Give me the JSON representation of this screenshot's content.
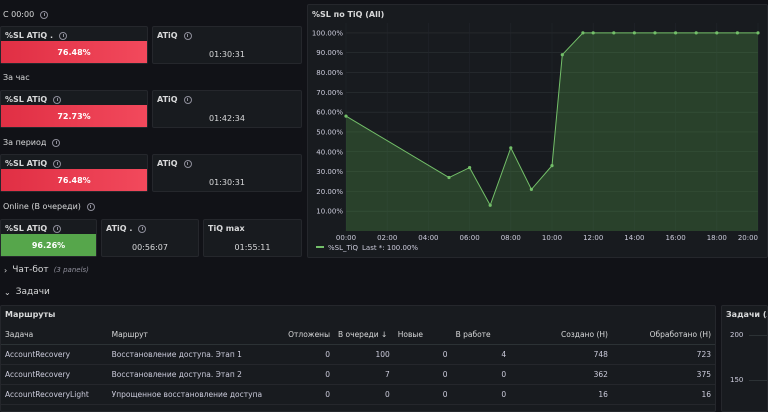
{
  "rows": {
    "c0000": "С 00:00",
    "za_chas": "За час",
    "za_period": "За период",
    "online": "Online (В очереди)"
  },
  "stats": {
    "sl_label": "%SL ATiQ .",
    "sl_label2": "%SL ATiQ",
    "atiq_label": "ATiQ",
    "atiq_label_online": "ATiQ .",
    "tiqmax_label": "TiQ max",
    "c0000_sl": "76.48%",
    "c0000_atiq": "01:30:31",
    "hour_sl": "72.73%",
    "hour_atiq": "01:42:34",
    "period_sl": "76.48%",
    "period_atiq": "01:30:31",
    "online_sl": "96.26%",
    "online_atiq": "00:56:07",
    "online_tiqmax": "01:55:11"
  },
  "chart_panel": {
    "title": "%SL по TiQ (All)"
  },
  "chart_data": {
    "type": "line",
    "title": "%SL по TiQ (All)",
    "x_labels": [
      "00:00",
      "02:00",
      "04:00",
      "06:00",
      "08:00",
      "10:00",
      "12:00",
      "14:00",
      "16:00",
      "18:00",
      "20:00"
    ],
    "y_labels": [
      "10.00%",
      "20.00%",
      "30.00%",
      "40.00%",
      "50.00%",
      "60.00%",
      "70.00%",
      "80.00%",
      "90.00%",
      "100.00%"
    ],
    "ylim": [
      0,
      105
    ],
    "xlim": [
      0,
      20
    ],
    "series": [
      {
        "name": "%SL_TiQ",
        "x": [
          0,
          5,
          6,
          7,
          8,
          9,
          10,
          10.5,
          11.5,
          12,
          13,
          14,
          15,
          16,
          17,
          18,
          19,
          20
        ],
        "y": [
          58,
          27,
          32,
          13,
          42,
          21,
          33,
          89,
          100,
          100,
          100,
          100,
          100,
          100,
          100,
          100,
          100,
          100
        ]
      }
    ],
    "legend": "%SL_TiQ",
    "legend_last": "Last *: 100.00%"
  },
  "sections": {
    "chatbot": "Чат-бот",
    "chatbot_panels": "(3 panels)",
    "tasks": "Задачи"
  },
  "routes": {
    "title": "Маршруты",
    "columns": [
      "Задача",
      "Маршрут",
      "Отложены",
      "В очереди ↓",
      "Новые",
      "В работе",
      "Создано (Н)",
      "Обработано (Н)"
    ],
    "rows": [
      [
        "AccountRecovery",
        "Восстановление доступа. Этап 1",
        "0",
        "100",
        "0",
        "4",
        "748",
        "723"
      ],
      [
        "AccountRecovery",
        "Восстановление доступа. Этап 2",
        "0",
        "7",
        "0",
        "0",
        "362",
        "375"
      ],
      [
        "AccountRecoveryLight",
        "Упрощенное восстановление доступа",
        "0",
        "0",
        "0",
        "0",
        "16",
        "16"
      ]
    ]
  },
  "tasks_panel": {
    "title": "Задачи (All)",
    "y_labels": [
      "200",
      "150"
    ]
  }
}
